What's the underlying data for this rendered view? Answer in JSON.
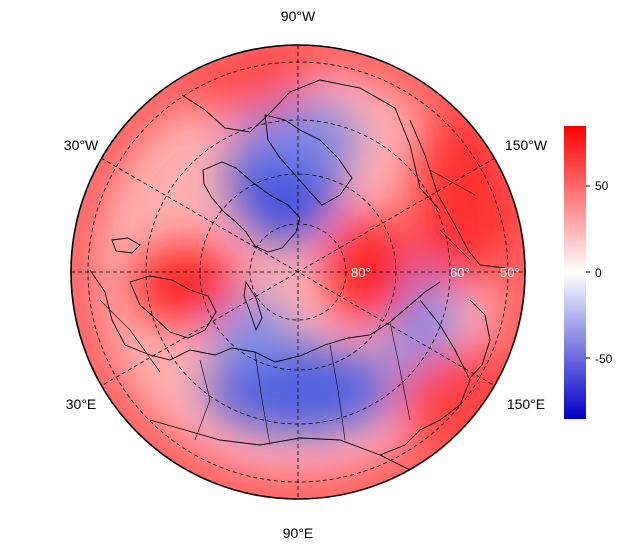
{
  "map": {
    "projection": "north-polar-stereographic",
    "longitude_labels": [
      "90°W",
      "30°W",
      "150°W",
      "30°E",
      "150°E",
      "90°E"
    ],
    "latitude_labels": [
      "80°",
      "60°",
      "50°"
    ],
    "graticule_style": "dashed",
    "colormap": [
      "#0000c8",
      "#ffffff",
      "#ff0000"
    ]
  },
  "colorbar": {
    "ticks": [
      "50",
      "0",
      "-50"
    ],
    "range": [
      -85,
      85
    ]
  }
}
